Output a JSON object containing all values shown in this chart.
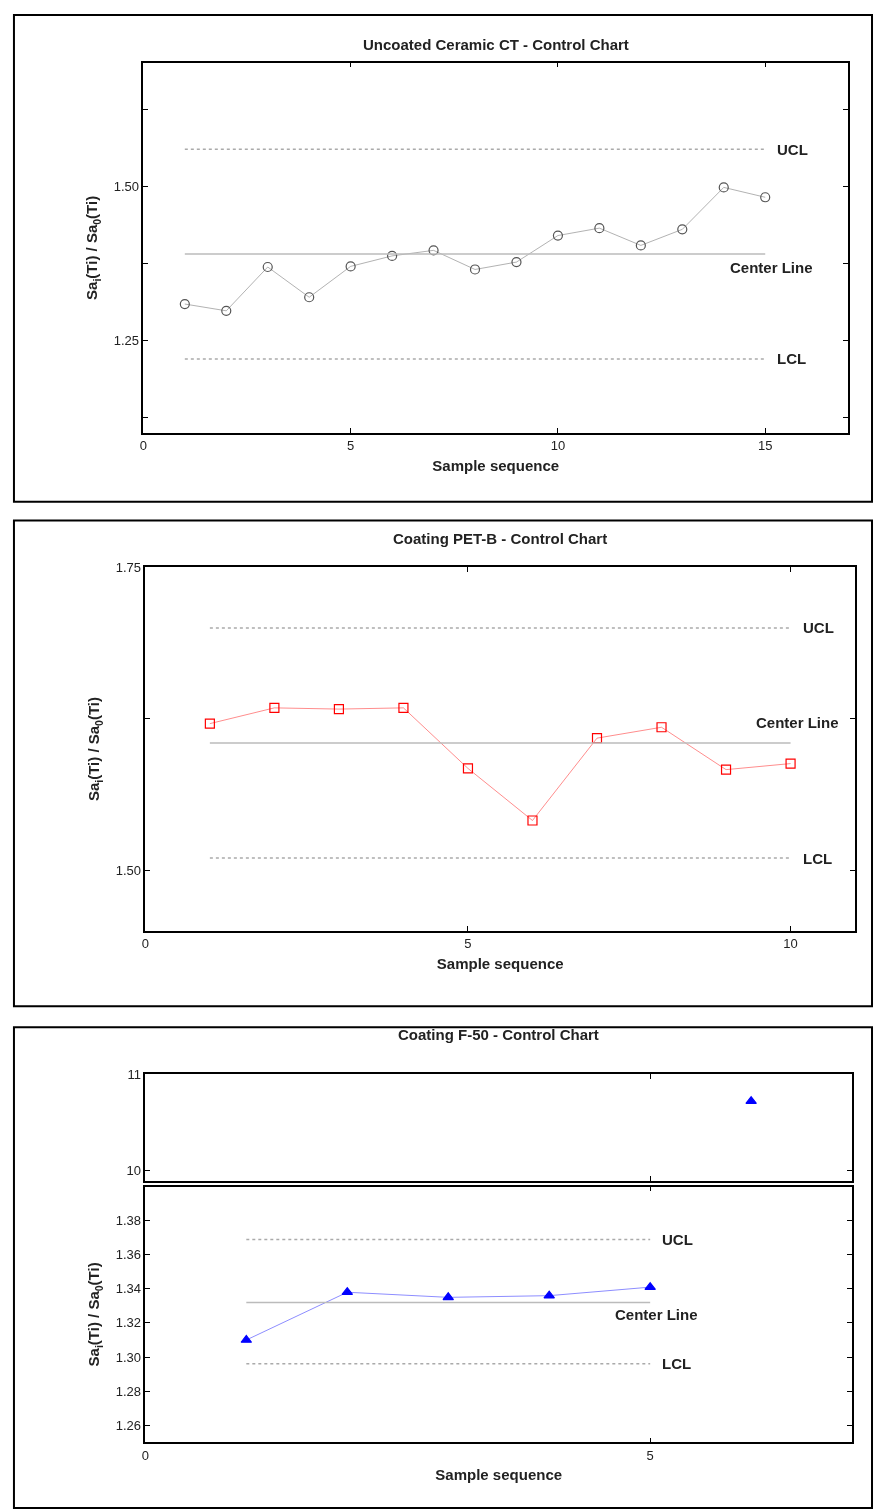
{
  "chart_data": [
    {
      "type": "line",
      "title": "Uncoated Ceramic CT - Control Chart",
      "xlabel": "Sample sequence",
      "ylabel": "Sa$_{i}$(Ti) / Sa$_{0}$(Ti)",
      "x": [
        1,
        2,
        3,
        4,
        5,
        6,
        7,
        8,
        9,
        10,
        11,
        12,
        13,
        14,
        15
      ],
      "series": [
        {
          "color": "#555555",
          "values": [
            1.309,
            1.298,
            1.369,
            1.32,
            1.37,
            1.387,
            1.396,
            1.365,
            1.377,
            1.42,
            1.432,
            1.404,
            1.43,
            1.498,
            1.482
          ]
        }
      ],
      "marker": "circle",
      "line_style": "solid",
      "xlim": [
        0,
        17
      ],
      "xticks": [
        0,
        5,
        10,
        15
      ],
      "ylim": [
        1.1,
        1.7
      ],
      "yticks": [
        {
          "value": 1.25,
          "label": "1.25"
        },
        {
          "value": 1.5,
          "label": "1.50"
        },
        {
          "value": 1.125,
          "label": null
        },
        {
          "value": 1.375,
          "label": null
        },
        {
          "value": 1.625,
          "label": null
        }
      ],
      "ref_lines": [
        {
          "axis": "y",
          "value": 1.56,
          "label": "UCL",
          "color": "#aaaaaa",
          "line_style": "dotted"
        },
        {
          "axis": "y",
          "value": 1.39,
          "label": "Center Line",
          "color": "#bbbbbb",
          "line_style": "solid"
        },
        {
          "axis": "y",
          "value": 1.22,
          "label": "LCL",
          "color": "#aaaaaa",
          "line_style": "dotted"
        }
      ]
    },
    {
      "type": "line",
      "title": "Coating PET-B - Control Chart",
      "xlabel": "Sample sequence",
      "ylabel": "Sa$_{i}$(Ti) / Sa$_{0}$(Ti)",
      "x": [
        1,
        2,
        3,
        4,
        5,
        6,
        7,
        8,
        9,
        10
      ],
      "series": [
        {
          "color": "#ff0000",
          "values": [
            1.621,
            1.634,
            1.633,
            1.634,
            1.584,
            1.541,
            1.609,
            1.618,
            1.583,
            1.588
          ]
        }
      ],
      "marker": "square",
      "line_style": "solid",
      "xlim": [
        0,
        11
      ],
      "xticks": [
        0,
        5,
        10
      ],
      "ylim": [
        1.45,
        1.75
      ],
      "yticks": [
        {
          "value": 1.5,
          "label": "1.50"
        },
        {
          "value": 1.75,
          "label": "1.75"
        },
        {
          "value": 1.625,
          "label": null
        }
      ],
      "ref_lines": [
        {
          "axis": "y",
          "value": 1.7,
          "label": "UCL",
          "color": "#aaaaaa",
          "line_style": "dotted"
        },
        {
          "axis": "y",
          "value": 1.605,
          "label": "Center Line",
          "color": "#bbbbbb",
          "line_style": "solid"
        },
        {
          "axis": "y",
          "value": 1.51,
          "label": "LCL",
          "color": "#aaaaaa",
          "line_style": "dotted"
        }
      ]
    },
    {
      "type": "line",
      "title": "Coating F-50 - Control Chart",
      "series": [
        {
          "color": "#0000ff",
          "x": [
            6
          ],
          "values": [
            10.72
          ]
        }
      ],
      "marker": "triangle",
      "line_style": "solid",
      "tick_labels": "y",
      "xlim": [
        0,
        7
      ],
      "xticks": [
        0,
        5
      ],
      "ylim": [
        9.9,
        11
      ],
      "yticks": [
        10,
        11
      ]
    },
    {
      "type": "line",
      "xlabel": "Sample sequence",
      "ylabel": "Sa$_{i}$(Ti) / Sa$_{0}$(Ti)",
      "series": [
        {
          "color": "#0000ff",
          "x": [
            1,
            2,
            3,
            4,
            5
          ],
          "values": [
            1.31,
            1.338,
            1.335,
            1.336,
            1.341
          ]
        }
      ],
      "marker": "triangle",
      "line_style": "solid",
      "xlim": [
        0,
        7
      ],
      "xticks": [
        0,
        5
      ],
      "ylim": [
        1.25,
        1.4
      ],
      "yticks": [
        {
          "value": 1.26,
          "label": "1.26"
        },
        {
          "value": 1.28,
          "label": "1.28"
        },
        {
          "value": 1.3,
          "label": "1.30"
        },
        {
          "value": 1.32,
          "label": "1.32"
        },
        {
          "value": 1.34,
          "label": "1.34"
        },
        {
          "value": 1.36,
          "label": "1.36"
        },
        {
          "value": 1.38,
          "label": "1.38"
        }
      ],
      "ref_lines": [
        {
          "axis": "y",
          "value": 1.369,
          "label": "UCL",
          "color": "#aaaaaa",
          "line_style": "dotted"
        },
        {
          "axis": "y",
          "value": 1.332,
          "label": "Center Line",
          "color": "#bbbbbb",
          "line_style": "solid"
        },
        {
          "axis": "y",
          "value": 1.296,
          "label": "LCL",
          "color": "#aaaaaa",
          "line_style": "dotted"
        }
      ]
    }
  ]
}
